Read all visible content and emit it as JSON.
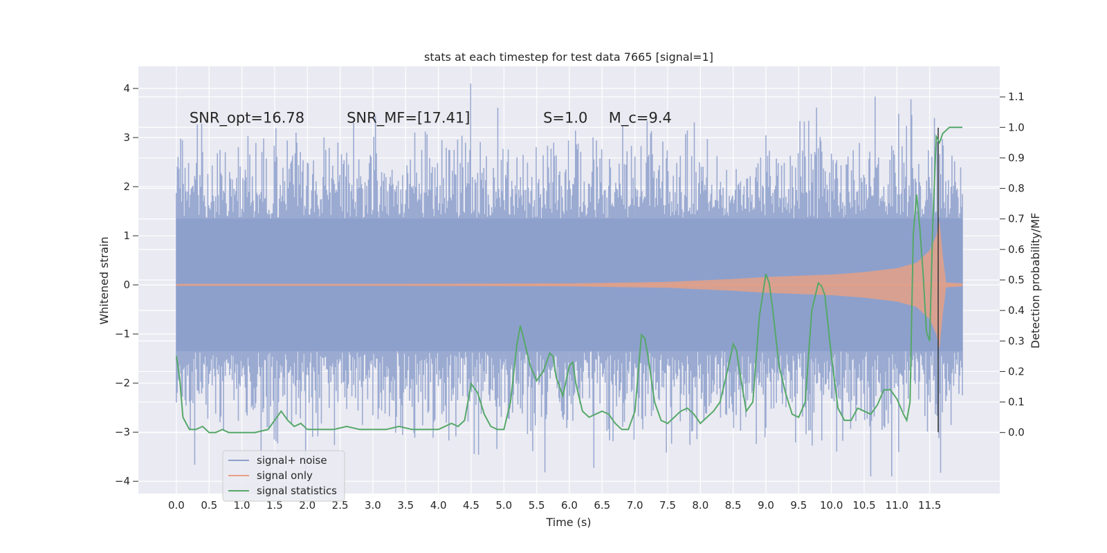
{
  "chart_data": {
    "type": "line",
    "title": "stats at each timestep for test data 7665 [signal=1]",
    "xlabel": "Time (s)",
    "ylabel": "Whitened strain",
    "ylabel_right": "Detection probability/MF",
    "xlim": [
      -0.58,
      12.57
    ],
    "ylim": [
      -4.25,
      4.45
    ],
    "ylim_right": [
      -0.2,
      1.2
    ],
    "xticks": [
      0.0,
      0.5,
      1.0,
      1.5,
      2.0,
      2.5,
      3.0,
      3.5,
      4.0,
      4.5,
      5.0,
      5.5,
      6.0,
      6.5,
      7.0,
      7.5,
      8.0,
      8.5,
      9.0,
      9.5,
      10.0,
      10.5,
      11.0,
      11.5
    ],
    "xtick_labels": [
      "0.0",
      "0.5",
      "1.0",
      "1.5",
      "2.0",
      "2.5",
      "3.0",
      "3.5",
      "4.0",
      "4.5",
      "5.0",
      "5.5",
      "6.0",
      "6.5",
      "7.0",
      "7.5",
      "8.0",
      "8.5",
      "9.0",
      "9.5",
      "10.0",
      "10.5",
      "11.0",
      "11.5"
    ],
    "yticks": [
      -4,
      -3,
      -2,
      -1,
      0,
      1,
      2,
      3,
      4
    ],
    "ytick_labels": [
      "−4",
      "−3",
      "−2",
      "−1",
      "0",
      "1",
      "2",
      "3",
      "4"
    ],
    "yticks_right": [
      0.0,
      0.1,
      0.2,
      0.3,
      0.4,
      0.5,
      0.6,
      0.7,
      0.8,
      0.9,
      1.0,
      1.1
    ],
    "ytick_labels_right": [
      "0.0",
      "0.1",
      "0.2",
      "0.3",
      "0.4",
      "0.5",
      "0.6",
      "0.7",
      "0.8",
      "0.9",
      "1.0",
      "1.1"
    ],
    "annotations": [
      {
        "text": "SNR_opt=16.78",
        "x": 0.2,
        "y": 3.3
      },
      {
        "text": "SNR_MF=[17.41]",
        "x": 2.6,
        "y": 3.3
      },
      {
        "text": "S=1.0",
        "x": 5.6,
        "y": 3.3
      },
      {
        "text": "M_c=9.4",
        "x": 6.6,
        "y": 3.3
      }
    ],
    "vline_x": 11.63,
    "noise_series": {
      "name": "signal+ noise",
      "color": "#8c9fcb",
      "x_range": [
        0.0,
        12.0
      ],
      "amplitude_core": 1.35,
      "peak_max": 4.1,
      "peak_min": -3.9
    },
    "signal_series": {
      "name": "signal only",
      "color": "#e5a085",
      "envelope_x": [
        0.0,
        3.0,
        6.0,
        7.5,
        8.5,
        9.0,
        10.0,
        10.5,
        11.0,
        11.3,
        11.5,
        11.6,
        11.65,
        11.7,
        11.75,
        12.0
      ],
      "envelope_amp": [
        0.02,
        0.02,
        0.03,
        0.06,
        0.12,
        0.16,
        0.21,
        0.26,
        0.34,
        0.45,
        0.7,
        1.0,
        1.3,
        0.6,
        0.05,
        0.03
      ]
    },
    "stats_series": {
      "name": "signal statistics",
      "color": "#55a868",
      "x": [
        0.0,
        0.05,
        0.1,
        0.15,
        0.2,
        0.3,
        0.4,
        0.5,
        0.6,
        0.7,
        0.8,
        1.0,
        1.2,
        1.4,
        1.5,
        1.6,
        1.7,
        1.8,
        1.9,
        2.0,
        2.1,
        2.2,
        2.4,
        2.6,
        2.8,
        3.0,
        3.2,
        3.4,
        3.6,
        3.8,
        4.0,
        4.2,
        4.3,
        4.4,
        4.5,
        4.6,
        4.7,
        4.8,
        4.9,
        5.0,
        5.1,
        5.2,
        5.25,
        5.3,
        5.4,
        5.5,
        5.6,
        5.7,
        5.75,
        5.8,
        5.9,
        6.0,
        6.05,
        6.1,
        6.2,
        6.3,
        6.4,
        6.5,
        6.6,
        6.7,
        6.8,
        6.9,
        7.0,
        7.1,
        7.15,
        7.2,
        7.3,
        7.4,
        7.5,
        7.6,
        7.7,
        7.8,
        7.9,
        8.0,
        8.1,
        8.2,
        8.3,
        8.4,
        8.5,
        8.55,
        8.6,
        8.7,
        8.8,
        8.9,
        9.0,
        9.05,
        9.1,
        9.2,
        9.3,
        9.4,
        9.5,
        9.6,
        9.7,
        9.8,
        9.85,
        9.9,
        10.0,
        10.1,
        10.2,
        10.3,
        10.4,
        10.5,
        10.6,
        10.7,
        10.8,
        10.9,
        11.0,
        11.1,
        11.15,
        11.2,
        11.25,
        11.3,
        11.35,
        11.4,
        11.45,
        11.5,
        11.55,
        11.6,
        11.65,
        11.7,
        11.75,
        11.8,
        11.85,
        11.9,
        12.0
      ],
      "y": [
        0.25,
        0.18,
        0.05,
        0.03,
        0.01,
        0.01,
        0.02,
        0.0,
        0.0,
        0.01,
        0.0,
        0.0,
        0.0,
        0.01,
        0.04,
        0.07,
        0.04,
        0.02,
        0.03,
        0.01,
        0.01,
        0.01,
        0.01,
        0.02,
        0.01,
        0.01,
        0.01,
        0.02,
        0.01,
        0.01,
        0.01,
        0.03,
        0.02,
        0.04,
        0.16,
        0.13,
        0.06,
        0.02,
        0.01,
        0.01,
        0.1,
        0.29,
        0.35,
        0.31,
        0.22,
        0.17,
        0.2,
        0.26,
        0.25,
        0.18,
        0.12,
        0.22,
        0.23,
        0.16,
        0.07,
        0.05,
        0.06,
        0.07,
        0.06,
        0.03,
        0.01,
        0.01,
        0.07,
        0.32,
        0.31,
        0.25,
        0.1,
        0.04,
        0.03,
        0.05,
        0.07,
        0.08,
        0.06,
        0.03,
        0.05,
        0.07,
        0.1,
        0.19,
        0.29,
        0.27,
        0.2,
        0.07,
        0.1,
        0.38,
        0.52,
        0.49,
        0.41,
        0.22,
        0.13,
        0.06,
        0.05,
        0.1,
        0.4,
        0.49,
        0.48,
        0.45,
        0.25,
        0.08,
        0.04,
        0.04,
        0.08,
        0.07,
        0.06,
        0.09,
        0.14,
        0.14,
        0.11,
        0.06,
        0.04,
        0.1,
        0.65,
        0.78,
        0.67,
        0.52,
        0.33,
        0.3,
        0.7,
        0.97,
        0.95,
        0.98,
        0.99,
        1.0,
        1.0,
        1.0,
        1.0
      ]
    },
    "legend": {
      "location": "lower-left",
      "entries": [
        {
          "label": "signal+ noise",
          "color": "#8c9fcb"
        },
        {
          "label": "signal only",
          "color": "#e5a085"
        },
        {
          "label": "signal statistics",
          "color": "#55a868"
        }
      ]
    },
    "background_color": "#eaeaf2",
    "grid_color": "#ffffff"
  }
}
